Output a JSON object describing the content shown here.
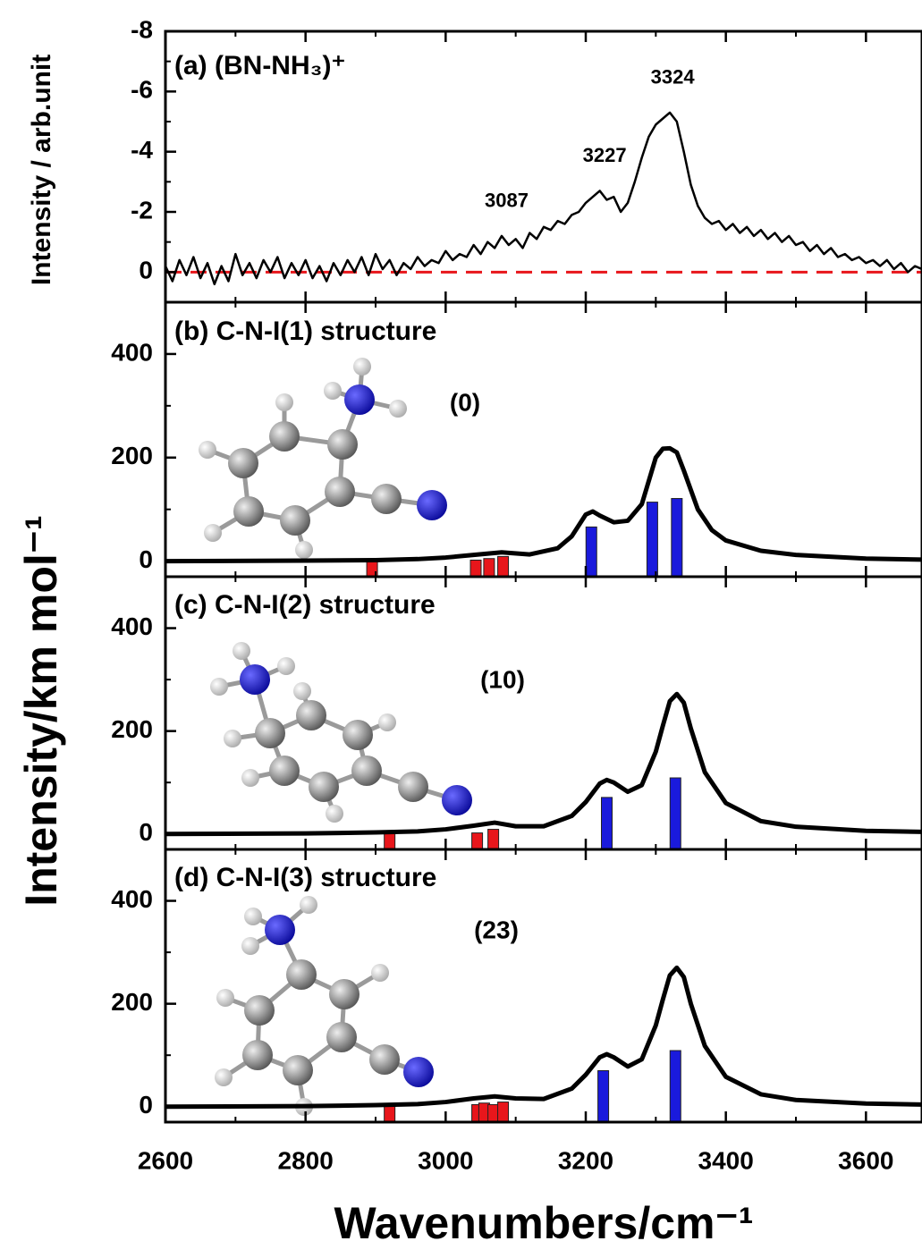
{
  "figure": {
    "ylabel": "Intensity/km mol⁻¹"
  },
  "chart_data": [
    {
      "type": "line",
      "title": "(a) (BN-NH₃)⁺",
      "ylabel": "Intensity / arb.unit",
      "xlim": [
        2600,
        3680
      ],
      "xticks": [
        2600,
        2800,
        3000,
        3200,
        3400,
        3600
      ],
      "xticks_minor": [
        2700,
        2900,
        3100,
        3300,
        3500
      ],
      "ylim": [
        -8,
        1
      ],
      "y_inverted": true,
      "yticks": [
        -8,
        -6,
        -4,
        -2,
        0
      ],
      "yticks_minor": [
        -7,
        -5,
        -3,
        -1
      ],
      "reference_line": {
        "value": 0,
        "color": "#e8161b",
        "style": "dashed"
      },
      "peak_labels": [
        3087,
        3227,
        3324
      ],
      "series": [
        {
          "color": "#000000",
          "x": [
            2600,
            2610,
            2620,
            2630,
            2640,
            2650,
            2660,
            2670,
            2680,
            2690,
            2700,
            2710,
            2720,
            2730,
            2740,
            2750,
            2760,
            2770,
            2780,
            2790,
            2800,
            2810,
            2820,
            2830,
            2840,
            2850,
            2860,
            2870,
            2880,
            2890,
            2900,
            2910,
            2920,
            2930,
            2940,
            2950,
            2960,
            2970,
            2980,
            2990,
            3000,
            3010,
            3020,
            3030,
            3040,
            3050,
            3060,
            3070,
            3080,
            3090,
            3100,
            3110,
            3120,
            3130,
            3140,
            3150,
            3160,
            3170,
            3180,
            3190,
            3200,
            3210,
            3220,
            3230,
            3240,
            3250,
            3260,
            3270,
            3280,
            3290,
            3300,
            3310,
            3320,
            3330,
            3340,
            3350,
            3360,
            3370,
            3380,
            3390,
            3400,
            3410,
            3420,
            3430,
            3440,
            3450,
            3460,
            3470,
            3480,
            3490,
            3500,
            3510,
            3520,
            3530,
            3540,
            3550,
            3560,
            3570,
            3580,
            3590,
            3600,
            3610,
            3620,
            3630,
            3640,
            3650,
            3660,
            3670,
            3680
          ],
          "values": [
            -0.2,
            0.3,
            -0.4,
            0.1,
            -0.5,
            0.2,
            -0.3,
            0.4,
            -0.2,
            0.3,
            -0.6,
            0.1,
            -0.3,
            0.2,
            -0.4,
            0,
            -0.5,
            0.2,
            -0.3,
            0.1,
            -0.4,
            0.2,
            -0.2,
            0.3,
            -0.3,
            0.1,
            -0.4,
            0,
            -0.5,
            0.1,
            -0.6,
            -0.1,
            -0.4,
            0.1,
            -0.3,
            -0.1,
            -0.5,
            -0.2,
            -0.4,
            -0.3,
            -0.7,
            -0.4,
            -0.6,
            -0.5,
            -0.9,
            -0.6,
            -1.0,
            -0.8,
            -1.2,
            -0.9,
            -1.1,
            -0.8,
            -1.3,
            -1.1,
            -1.5,
            -1.4,
            -1.7,
            -1.6,
            -1.9,
            -2.0,
            -2.3,
            -2.5,
            -2.7,
            -2.4,
            -2.5,
            -2.0,
            -2.3,
            -3.0,
            -3.8,
            -4.5,
            -4.9,
            -5.1,
            -5.3,
            -5.0,
            -4.0,
            -2.9,
            -2.2,
            -1.8,
            -1.6,
            -1.7,
            -1.4,
            -1.6,
            -1.3,
            -1.5,
            -1.2,
            -1.4,
            -1.1,
            -1.3,
            -1.0,
            -1.2,
            -0.9,
            -1.0,
            -0.7,
            -0.9,
            -0.6,
            -0.8,
            -0.5,
            -0.6,
            -0.4,
            -0.5,
            -0.3,
            -0.4,
            -0.2,
            -0.4,
            -0.1,
            -0.3,
            0,
            -0.2,
            -0.1
          ]
        }
      ]
    },
    {
      "type": "spectrum",
      "title": "(b) C-N-I(1) structure",
      "energy_label": "(0)",
      "xlim": [
        2600,
        3680
      ],
      "xticks": [
        2600,
        2800,
        3000,
        3200,
        3400,
        3600
      ],
      "xticks_minor": [
        2700,
        2900,
        3100,
        3300,
        3500
      ],
      "ylim": [
        -30,
        500
      ],
      "yticks": [
        0,
        200,
        400
      ],
      "yticks_minor": [
        100,
        300
      ],
      "curve": {
        "color": "#000000",
        "x": [
          2600,
          2800,
          2900,
          2960,
          3000,
          3040,
          3080,
          3120,
          3160,
          3180,
          3200,
          3210,
          3220,
          3240,
          3260,
          3280,
          3300,
          3310,
          3320,
          3330,
          3340,
          3360,
          3380,
          3400,
          3450,
          3500,
          3600,
          3680
        ],
        "values": [
          0,
          1,
          2,
          4,
          7,
          12,
          17,
          13,
          25,
          48,
          90,
          96,
          88,
          75,
          78,
          110,
          200,
          217,
          218,
          210,
          175,
          100,
          60,
          40,
          20,
          12,
          5,
          3
        ]
      },
      "sticks": [
        {
          "color": "#e8161b",
          "x": [
            2895,
            3043,
            3062,
            3082
          ],
          "values": [
            1,
            2,
            5,
            9
          ]
        },
        {
          "color": "#1a1adc",
          "x": [
            3208,
            3295,
            3330
          ],
          "values": [
            66,
            114,
            121
          ]
        }
      ]
    },
    {
      "type": "spectrum",
      "title": "(c) C-N-I(2) structure",
      "energy_label": "(10)",
      "xlim": [
        2600,
        3680
      ],
      "xticks": [
        2600,
        2800,
        3000,
        3200,
        3400,
        3600
      ],
      "xticks_minor": [
        2700,
        2900,
        3100,
        3300,
        3500
      ],
      "ylim": [
        -30,
        500
      ],
      "yticks": [
        0,
        200,
        400
      ],
      "yticks_minor": [
        100,
        300
      ],
      "curve": {
        "color": "#000000",
        "x": [
          2600,
          2800,
          2900,
          2960,
          3000,
          3040,
          3070,
          3100,
          3140,
          3180,
          3200,
          3220,
          3230,
          3240,
          3260,
          3280,
          3300,
          3310,
          3320,
          3330,
          3340,
          3350,
          3370,
          3400,
          3450,
          3500,
          3600,
          3680
        ],
        "values": [
          0,
          1,
          3,
          5,
          9,
          16,
          22,
          15,
          15,
          35,
          62,
          98,
          105,
          100,
          82,
          95,
          160,
          210,
          258,
          272,
          255,
          205,
          120,
          60,
          25,
          14,
          6,
          4
        ]
      },
      "sticks": [
        {
          "color": "#e8161b",
          "x": [
            2920,
            3045,
            3068
          ],
          "values": [
            1,
            2,
            9
          ]
        },
        {
          "color": "#1a1adc",
          "x": [
            3230,
            3328
          ],
          "values": [
            71,
            109
          ]
        }
      ]
    },
    {
      "type": "spectrum",
      "title": "(d) C-N-I(3) structure",
      "energy_label": "(23)",
      "xlabel": "Wavenumbers/cm⁻¹",
      "xtick_labels": true,
      "xlim": [
        2600,
        3680
      ],
      "xticks": [
        2600,
        2800,
        3000,
        3200,
        3400,
        3600
      ],
      "xticks_minor": [
        2700,
        2900,
        3100,
        3300,
        3500
      ],
      "ylim": [
        -30,
        500
      ],
      "yticks": [
        0,
        200,
        400
      ],
      "yticks_minor": [
        100,
        300
      ],
      "curve": {
        "color": "#000000",
        "x": [
          2600,
          2800,
          2900,
          2960,
          3000,
          3040,
          3070,
          3100,
          3140,
          3180,
          3200,
          3220,
          3230,
          3240,
          3260,
          3280,
          3300,
          3310,
          3320,
          3330,
          3340,
          3350,
          3370,
          3400,
          3450,
          3500,
          3600,
          3680
        ],
        "values": [
          0,
          1,
          3,
          5,
          9,
          16,
          20,
          16,
          15,
          35,
          62,
          96,
          102,
          96,
          78,
          92,
          158,
          208,
          255,
          270,
          252,
          200,
          118,
          58,
          24,
          13,
          6,
          4
        ]
      },
      "sticks": [
        {
          "color": "#e8161b",
          "x": [
            2920,
            3045,
            3055,
            3068,
            3082
          ],
          "values": [
            2,
            4,
            7,
            4,
            9
          ]
        },
        {
          "color": "#1a1adc",
          "x": [
            3225,
            3328
          ],
          "values": [
            70,
            109
          ]
        }
      ]
    }
  ]
}
